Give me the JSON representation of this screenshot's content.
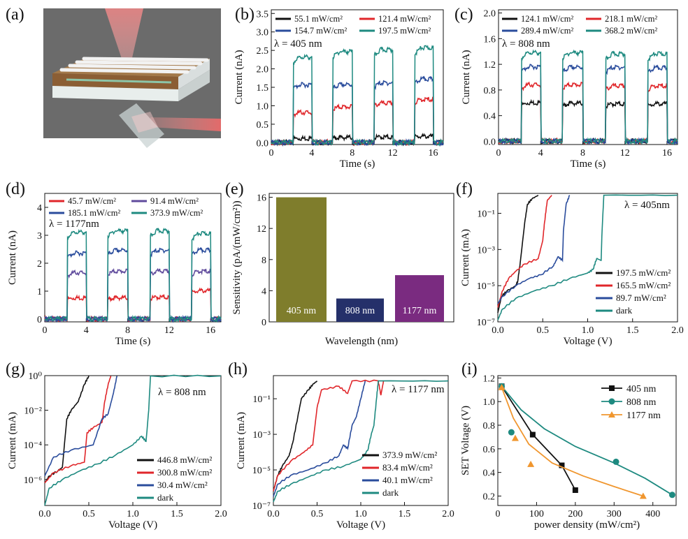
{
  "panel_labels": [
    "(a)",
    "(b)",
    "(c)",
    "(d)",
    "(e)",
    "(f)",
    "(g)",
    "(h)",
    "(i)"
  ],
  "colors": {
    "black": "#111111",
    "red": "#e0262a",
    "blue": "#2a4c9c",
    "teal": "#1e8a80",
    "purple": "#5f4a9c",
    "olive": "#7f7d2c",
    "navy": "#25306a",
    "magenta": "#7a2b80",
    "orange": "#f0962e"
  },
  "chart_data": [
    {
      "id": "b",
      "type": "line",
      "annotation": "λ = 405 nm",
      "xlabel": "Time (s)",
      "ylabel": "Current (nA)",
      "xlim": [
        0,
        17
      ],
      "ylim": [
        -0.05,
        3.6
      ],
      "xticks": [
        0,
        4,
        8,
        12,
        16
      ],
      "yticks": [
        0.0,
        0.5,
        1.0,
        1.5,
        2.0,
        2.5,
        3.0,
        3.5
      ],
      "on_intervals": [
        [
          2.2,
          4.0
        ],
        [
          6.1,
          8.0
        ],
        [
          10.2,
          12.0
        ],
        [
          14.2,
          16.0
        ]
      ],
      "series": [
        {
          "name": "55.1 mW/cm²",
          "color": "black",
          "plateaus": [
            0.15,
            0.17,
            0.18,
            0.2
          ]
        },
        {
          "name": "121.4 mW/cm²",
          "color": "red",
          "plateaus": [
            0.85,
            1.0,
            1.1,
            1.2
          ]
        },
        {
          "name": "154.7 mW/cm²",
          "color": "blue",
          "plateaus": [
            1.6,
            1.6,
            1.65,
            1.75
          ]
        },
        {
          "name": "197.5 mW/cm²",
          "color": "teal",
          "plateaus": [
            2.35,
            2.5,
            2.55,
            2.6
          ]
        }
      ]
    },
    {
      "id": "c",
      "type": "line",
      "annotation": "λ = 808 nm",
      "xlabel": "Time (s)",
      "ylabel": "Current (nA)",
      "xlim": [
        0,
        17
      ],
      "ylim": [
        -0.05,
        2.05
      ],
      "xticks": [
        0,
        4,
        8,
        12,
        16
      ],
      "yticks": [
        0.0,
        0.4,
        0.8,
        1.2,
        1.6,
        2.0
      ],
      "on_intervals": [
        [
          2.2,
          4.0
        ],
        [
          6.1,
          8.0
        ],
        [
          10.2,
          12.0
        ],
        [
          14.2,
          16.0
        ]
      ],
      "series": [
        {
          "name": "124.1 mW/cm²",
          "color": "black",
          "plateaus": [
            0.62,
            0.61,
            0.6,
            0.6
          ]
        },
        {
          "name": "218.1 mW/cm²",
          "color": "red",
          "plateaus": [
            0.9,
            0.9,
            0.88,
            0.88
          ]
        },
        {
          "name": "289.4 mW/cm²",
          "color": "blue",
          "plateaus": [
            1.18,
            1.17,
            1.17,
            1.16
          ]
        },
        {
          "name": "368.2 mW/cm²",
          "color": "teal",
          "plateaus": [
            1.4,
            1.4,
            1.38,
            1.38
          ]
        }
      ]
    },
    {
      "id": "d",
      "type": "line",
      "annotation": "λ = 1177nm",
      "xlabel": "Time (s)",
      "ylabel": "Current (nA)",
      "xlim": [
        0,
        17
      ],
      "ylim": [
        -0.1,
        4.5
      ],
      "xticks": [
        0,
        4,
        8,
        12,
        16
      ],
      "yticks": [
        0,
        1,
        2,
        3,
        4
      ],
      "on_intervals": [
        [
          2.2,
          4.0
        ],
        [
          6.1,
          8.0
        ],
        [
          10.2,
          12.0
        ],
        [
          14.2,
          16.0
        ]
      ],
      "series": [
        {
          "name": "45.7 mW/cm²",
          "color": "red",
          "plateaus": [
            0.8,
            0.8,
            0.82,
            1.05
          ]
        },
        {
          "name": "91.4 mW/cm²",
          "color": "purple",
          "plateaus": [
            1.7,
            1.75,
            1.75,
            1.75
          ]
        },
        {
          "name": "185.1 mW/cm²",
          "color": "blue",
          "plateaus": [
            2.4,
            2.5,
            2.5,
            2.5
          ]
        },
        {
          "name": "373.9 mW/cm²",
          "color": "teal",
          "plateaus": [
            3.15,
            3.2,
            3.2,
            3.1
          ]
        }
      ]
    },
    {
      "id": "e",
      "type": "bar",
      "xlabel": "Wavelength (nm)",
      "ylabel": "Sensitivity (pA/(mW/cm²))",
      "ylim": [
        0,
        16.5
      ],
      "yticks": [
        0,
        4,
        8,
        12,
        16
      ],
      "categories": [
        "405 nm",
        "808 nm",
        "1177 nm"
      ],
      "values": [
        16,
        3,
        6
      ],
      "bar_colors": [
        "olive",
        "navy",
        "magenta"
      ]
    },
    {
      "id": "f",
      "type": "line",
      "yscale": "log",
      "annotation": "λ = 405nm",
      "xlabel": "Voltage (V)",
      "ylabel": "Current (mA)",
      "xlim": [
        0,
        2.0
      ],
      "ylim_exp": [
        -7,
        0.1
      ],
      "xticks": [
        0.0,
        0.5,
        1.0,
        1.5,
        2.0
      ],
      "yticks": [
        "10⁻⁷",
        "10⁻⁵",
        "10⁻³",
        "10⁻¹"
      ],
      "series": [
        {
          "name": "197.5 mW/cm²",
          "color": "black",
          "points": [
            [
              0,
              -6.5
            ],
            [
              0.04,
              -5.6
            ],
            [
              0.1,
              -5.3
            ],
            [
              0.2,
              -5.0
            ],
            [
              0.22,
              -4.8
            ],
            [
              0.25,
              -3.7
            ],
            [
              0.3,
              -1.5
            ],
            [
              0.33,
              -0.5
            ],
            [
              0.38,
              -0.2
            ],
            [
              0.45,
              0
            ]
          ]
        },
        {
          "name": "165.5 mW/cm²",
          "color": "red",
          "points": [
            [
              0,
              -6.2
            ],
            [
              0.05,
              -5.3
            ],
            [
              0.12,
              -4.6
            ],
            [
              0.2,
              -4.2
            ],
            [
              0.3,
              -3.8
            ],
            [
              0.45,
              -3.5
            ],
            [
              0.5,
              -2.5
            ],
            [
              0.52,
              -1.5
            ],
            [
              0.55,
              -0.3
            ],
            [
              0.6,
              0
            ]
          ]
        },
        {
          "name": "89.7 mW/cm²",
          "color": "blue",
          "points": [
            [
              0,
              -6.0
            ],
            [
              0.05,
              -5.6
            ],
            [
              0.2,
              -5.0
            ],
            [
              0.35,
              -4.6
            ],
            [
              0.48,
              -4.4
            ],
            [
              0.62,
              -3.9
            ],
            [
              0.67,
              -3.4
            ],
            [
              0.72,
              -3.6
            ],
            [
              0.73,
              -2
            ],
            [
              0.76,
              -0.5
            ],
            [
              0.8,
              0
            ]
          ]
        },
        {
          "name": "dark",
          "color": "teal",
          "points": [
            [
              0,
              -6.9
            ],
            [
              0.05,
              -6.3
            ],
            [
              0.2,
              -5.7
            ],
            [
              0.4,
              -5.3
            ],
            [
              0.6,
              -5.0
            ],
            [
              0.8,
              -4.6
            ],
            [
              1.0,
              -4.3
            ],
            [
              1.06,
              -4.1
            ],
            [
              1.1,
              -3.5
            ],
            [
              1.15,
              -3.6
            ],
            [
              1.16,
              -2
            ],
            [
              1.18,
              0
            ],
            [
              2.0,
              0
            ]
          ]
        }
      ]
    },
    {
      "id": "g",
      "type": "line",
      "yscale": "log",
      "annotation": "λ = 808 nm",
      "xlabel": "Voltage (V)",
      "ylabel": "Current (mA)",
      "xlim": [
        0,
        2.0
      ],
      "ylim_exp": [
        -7.5,
        0
      ],
      "xticks": [
        0.0,
        0.5,
        1.0,
        1.5,
        2.0
      ],
      "yticks": [
        "10⁰",
        "10⁻²",
        "10⁻⁴",
        "10⁻⁶"
      ],
      "series": [
        {
          "name": "446.8 mW/cm²",
          "color": "black",
          "points": [
            [
              0,
              -6.2
            ],
            [
              0.05,
              -5.8
            ],
            [
              0.15,
              -5.5
            ],
            [
              0.2,
              -5.3
            ],
            [
              0.25,
              -2.5
            ],
            [
              0.3,
              -2
            ],
            [
              0.38,
              -1.5
            ],
            [
              0.45,
              -0.5
            ],
            [
              0.5,
              0
            ]
          ]
        },
        {
          "name": "300.8 mW/cm²",
          "color": "red",
          "points": [
            [
              0,
              -6.2
            ],
            [
              0.1,
              -5.6
            ],
            [
              0.3,
              -5.2
            ],
            [
              0.45,
              -5.0
            ],
            [
              0.48,
              -3.3
            ],
            [
              0.55,
              -3.0
            ],
            [
              0.65,
              -2.7
            ],
            [
              0.68,
              -1.5
            ],
            [
              0.72,
              -0.5
            ],
            [
              0.75,
              0
            ]
          ]
        },
        {
          "name": "30.4 mW/cm²",
          "color": "blue",
          "points": [
            [
              0,
              -5.8
            ],
            [
              0.1,
              -4.7
            ],
            [
              0.3,
              -4.3
            ],
            [
              0.55,
              -4.0
            ],
            [
              0.65,
              -2.5
            ],
            [
              0.72,
              -2.2
            ],
            [
              0.78,
              -1
            ],
            [
              0.82,
              0
            ]
          ]
        },
        {
          "name": "dark",
          "color": "teal",
          "points": [
            [
              0,
              -7.5
            ],
            [
              0.05,
              -6.5
            ],
            [
              0.2,
              -6.0
            ],
            [
              0.4,
              -5.5
            ],
            [
              0.6,
              -5.1
            ],
            [
              0.8,
              -4.6
            ],
            [
              1.0,
              -4.0
            ],
            [
              1.1,
              -3.5
            ],
            [
              1.15,
              -3.8
            ],
            [
              1.18,
              -2
            ],
            [
              1.2,
              0
            ],
            [
              2.0,
              0
            ]
          ]
        }
      ]
    },
    {
      "id": "h",
      "type": "line",
      "yscale": "log",
      "annotation": "λ = 1177 nm",
      "xlabel": "Voltage (V)",
      "ylabel": "Current (mA)",
      "xlim": [
        0,
        2.0
      ],
      "ylim_exp": [
        -7,
        0.3
      ],
      "xticks": [
        0.0,
        0.5,
        1.0,
        1.5,
        2.0
      ],
      "yticks": [
        "10⁻⁷",
        "10⁻⁵",
        "10⁻³",
        "10⁻¹"
      ],
      "series": [
        {
          "name": "373.9 mW/cm²",
          "color": "black",
          "points": [
            [
              0,
              -6.2
            ],
            [
              0.05,
              -5.3
            ],
            [
              0.1,
              -4.8
            ],
            [
              0.18,
              -4.2
            ],
            [
              0.22,
              -3.5
            ],
            [
              0.28,
              -2
            ],
            [
              0.32,
              -1
            ],
            [
              0.4,
              -0.5
            ],
            [
              0.45,
              -0.2
            ],
            [
              0.5,
              0
            ]
          ]
        },
        {
          "name": "83.4 mW/cm²",
          "color": "red",
          "points": [
            [
              0,
              -6.2
            ],
            [
              0.05,
              -5.3
            ],
            [
              0.2,
              -4.5
            ],
            [
              0.35,
              -4.0
            ],
            [
              0.45,
              -3.6
            ],
            [
              0.5,
              -1.5
            ],
            [
              0.55,
              -0.5
            ],
            [
              0.75,
              -0.3
            ],
            [
              0.85,
              -0.7
            ],
            [
              0.9,
              0
            ],
            [
              1.2,
              0
            ],
            [
              1.23,
              -0.8
            ],
            [
              1.26,
              0
            ]
          ]
        },
        {
          "name": "40.1 mW/cm²",
          "color": "blue",
          "points": [
            [
              0,
              -6.5
            ],
            [
              0.05,
              -5.8
            ],
            [
              0.2,
              -5.3
            ],
            [
              0.4,
              -5.0
            ],
            [
              0.6,
              -4.6
            ],
            [
              0.75,
              -4.2
            ],
            [
              0.8,
              -3.6
            ],
            [
              0.85,
              -3.8
            ],
            [
              0.9,
              -2.5
            ],
            [
              0.95,
              -2.0
            ],
            [
              1.0,
              -1
            ],
            [
              1.05,
              0
            ]
          ]
        },
        {
          "name": "dark",
          "color": "teal",
          "points": [
            [
              0,
              -6.8
            ],
            [
              0.05,
              -6.2
            ],
            [
              0.2,
              -5.8
            ],
            [
              0.4,
              -5.4
            ],
            [
              0.6,
              -5.0
            ],
            [
              0.8,
              -4.8
            ],
            [
              1.0,
              -4.4
            ],
            [
              1.08,
              -3.9
            ],
            [
              1.12,
              -3.0
            ],
            [
              1.15,
              -2.5
            ],
            [
              1.18,
              -1.0
            ],
            [
              1.2,
              0
            ],
            [
              2.0,
              0
            ]
          ]
        }
      ]
    },
    {
      "id": "i",
      "type": "scatter",
      "xlabel": "power density (mW/cm²)",
      "ylabel": "SET Voltage (V)",
      "xlim": [
        0,
        460
      ],
      "ylim": [
        0.12,
        1.22
      ],
      "xticks": [
        0,
        100,
        200,
        300,
        400
      ],
      "yticks": [
        0.2,
        0.4,
        0.6,
        0.8,
        1.0,
        1.2
      ],
      "series": [
        {
          "name": "405 nm",
          "color": "black",
          "marker": "square",
          "points": [
            [
              10,
              1.13
            ],
            [
              90,
              0.72
            ],
            [
              165,
              0.46
            ],
            [
              200,
              0.25
            ]
          ],
          "fit": "line"
        },
        {
          "name": "808 nm",
          "color": "teal",
          "marker": "circle",
          "points": [
            [
              10,
              1.13
            ],
            [
              35,
              0.74
            ],
            [
              305,
              0.49
            ],
            [
              450,
              0.21
            ]
          ],
          "fit": [
            [
              10,
              1.13
            ],
            [
              60,
              0.93
            ],
            [
              120,
              0.77
            ],
            [
              200,
              0.62
            ],
            [
              300,
              0.48
            ],
            [
              380,
              0.35
            ],
            [
              450,
              0.21
            ]
          ]
        },
        {
          "name": "1177 nm",
          "color": "orange",
          "marker": "triangle",
          "points": [
            [
              10,
              1.12
            ],
            [
              45,
              0.69
            ],
            [
              85,
              0.47
            ],
            [
              375,
              0.2
            ]
          ],
          "fit": [
            [
              10,
              1.12
            ],
            [
              40,
              0.86
            ],
            [
              80,
              0.64
            ],
            [
              140,
              0.48
            ],
            [
              220,
              0.37
            ],
            [
              300,
              0.28
            ],
            [
              375,
              0.2
            ]
          ]
        }
      ]
    }
  ]
}
